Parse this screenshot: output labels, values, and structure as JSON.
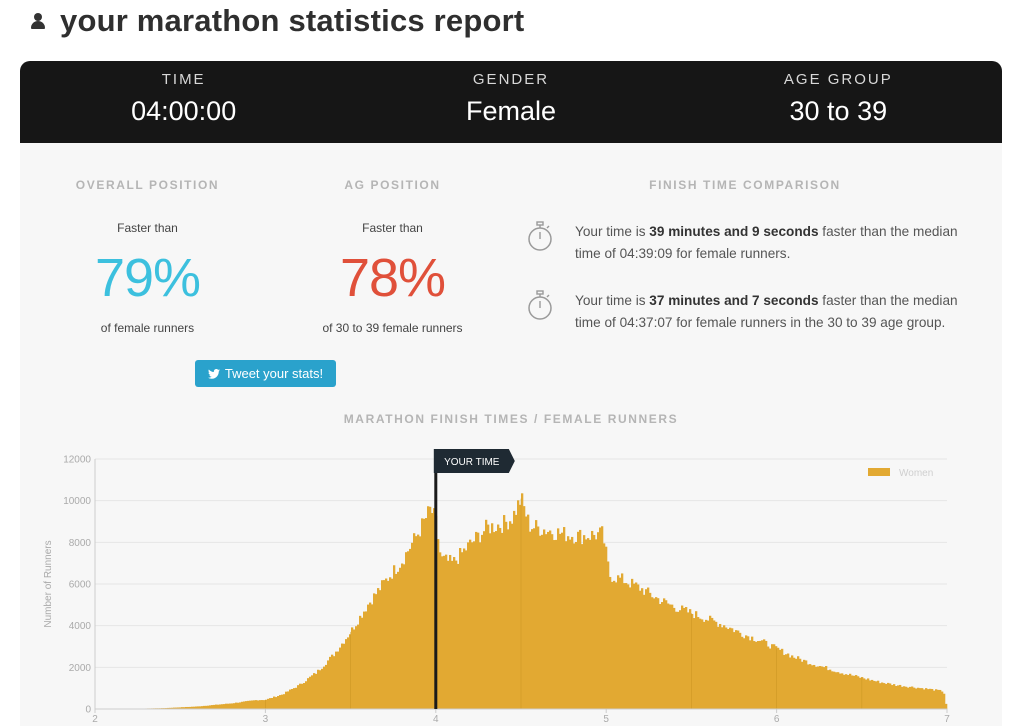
{
  "header": {
    "title": "your marathon statistics report",
    "icon": "user-icon"
  },
  "summary": [
    {
      "label": "TIME",
      "value": "04:00:00"
    },
    {
      "label": "GENDER",
      "value": "Female"
    },
    {
      "label": "AGE GROUP",
      "value": "30 to 39"
    }
  ],
  "overall": {
    "label": "OVERALL POSITION",
    "prefix": "Faster than",
    "percent": "79%",
    "suffix": "of female runners",
    "color": "#3cc0de"
  },
  "ag": {
    "label": "AG POSITION",
    "prefix": "Faster than",
    "percent": "78%",
    "suffix": "of 30 to 39 female runners",
    "color": "#e0503a"
  },
  "tweet": {
    "label": "Tweet your stats!",
    "icon": "twitter-icon"
  },
  "comparison": {
    "label": "FINISH TIME COMPARISON",
    "items": [
      {
        "pre": "Your time is ",
        "bold": "39 minutes and 9 seconds",
        "post": " faster than the median time of 04:39:09 for female runners.",
        "icon": "stopwatch-icon"
      },
      {
        "pre": "Your time is ",
        "bold": "37 minutes and 7 seconds",
        "post": " faster than the median time of 04:37:07 for female runners in the 30 to 39 age group.",
        "icon": "stopwatch-icon"
      }
    ]
  },
  "chart_data": {
    "type": "bar",
    "title": "MARATHON FINISH TIMES / FEMALE RUNNERS",
    "ylabel": "Number of Runners",
    "xlabel": "",
    "x_ticks": [
      "2",
      "3",
      "4",
      "5",
      "6",
      "7"
    ],
    "y_ticks": [
      "0",
      "2000",
      "4000",
      "6000",
      "8000",
      "10000",
      "12000"
    ],
    "xlim": [
      2,
      7
    ],
    "ylim": [
      0,
      12000
    ],
    "legend": {
      "name": "Women",
      "position": "top-right"
    },
    "marker": {
      "label": "YOUR TIME",
      "x": 4.0
    },
    "bar_color": "#e2a932",
    "series": [
      {
        "name": "Women",
        "points": [
          [
            2.0,
            0
          ],
          [
            2.2,
            10
          ],
          [
            2.4,
            40
          ],
          [
            2.6,
            120
          ],
          [
            2.8,
            270
          ],
          [
            2.95,
            430
          ],
          [
            3.0,
            440
          ],
          [
            3.1,
            700
          ],
          [
            3.2,
            1150
          ],
          [
            3.3,
            1750
          ],
          [
            3.4,
            2600
          ],
          [
            3.5,
            3700
          ],
          [
            3.6,
            5000
          ],
          [
            3.7,
            6100
          ],
          [
            3.8,
            7100
          ],
          [
            3.9,
            8500
          ],
          [
            3.97,
            9600
          ],
          [
            4.0,
            9000
          ],
          [
            4.03,
            7200
          ],
          [
            4.1,
            7000
          ],
          [
            4.2,
            7900
          ],
          [
            4.3,
            8700
          ],
          [
            4.4,
            8900
          ],
          [
            4.45,
            9200
          ],
          [
            4.5,
            10100
          ],
          [
            4.55,
            8800
          ],
          [
            4.65,
            8600
          ],
          [
            4.75,
            8400
          ],
          [
            4.85,
            8300
          ],
          [
            4.98,
            8400
          ],
          [
            5.02,
            6400
          ],
          [
            5.1,
            6200
          ],
          [
            5.2,
            5800
          ],
          [
            5.3,
            5300
          ],
          [
            5.4,
            4900
          ],
          [
            5.5,
            4600
          ],
          [
            5.6,
            4300
          ],
          [
            5.7,
            4000
          ],
          [
            5.8,
            3600
          ],
          [
            5.9,
            3300
          ],
          [
            6.0,
            2900
          ],
          [
            6.1,
            2500
          ],
          [
            6.2,
            2200
          ],
          [
            6.3,
            1950
          ],
          [
            6.4,
            1700
          ],
          [
            6.5,
            1500
          ],
          [
            6.6,
            1300
          ],
          [
            6.7,
            1150
          ],
          [
            6.8,
            1050
          ],
          [
            6.9,
            950
          ],
          [
            6.98,
            850
          ],
          [
            7.0,
            0
          ]
        ]
      }
    ]
  }
}
